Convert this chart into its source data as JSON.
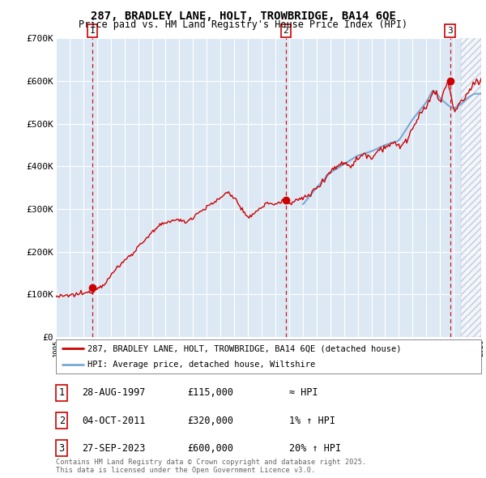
{
  "title_line1": "287, BRADLEY LANE, HOLT, TROWBRIDGE, BA14 6QE",
  "title_line2": "Price paid vs. HM Land Registry's House Price Index (HPI)",
  "fig_bg_color": "#ffffff",
  "plot_bg_color": "#dce9f5",
  "ylim": [
    0,
    700000
  ],
  "yticks": [
    0,
    100000,
    200000,
    300000,
    400000,
    500000,
    600000,
    700000
  ],
  "ytick_labels": [
    "£0",
    "£100K",
    "£200K",
    "£300K",
    "£400K",
    "£500K",
    "£600K",
    "£700K"
  ],
  "xmin": 1995.0,
  "xmax": 2026.0,
  "sale_dates": [
    1997.65,
    2011.75,
    2023.73
  ],
  "sale_prices": [
    115000,
    320000,
    600000
  ],
  "sale_labels": [
    "1",
    "2",
    "3"
  ],
  "red_line_color": "#cc0000",
  "blue_line_color": "#7aa8d4",
  "dashed_line_color": "#cc0000",
  "legend_label_red": "287, BRADLEY LANE, HOLT, TROWBRIDGE, BA14 6QE (detached house)",
  "legend_label_blue": "HPI: Average price, detached house, Wiltshire",
  "table_rows": [
    {
      "num": "1",
      "date": "28-AUG-1997",
      "price": "£115,000",
      "hpi": "≈ HPI"
    },
    {
      "num": "2",
      "date": "04-OCT-2011",
      "price": "£320,000",
      "hpi": "1% ↑ HPI"
    },
    {
      "num": "3",
      "date": "27-SEP-2023",
      "price": "£600,000",
      "hpi": "20% ↑ HPI"
    }
  ],
  "footnote": "Contains HM Land Registry data © Crown copyright and database right 2025.\nThis data is licensed under the Open Government Licence v3.0."
}
